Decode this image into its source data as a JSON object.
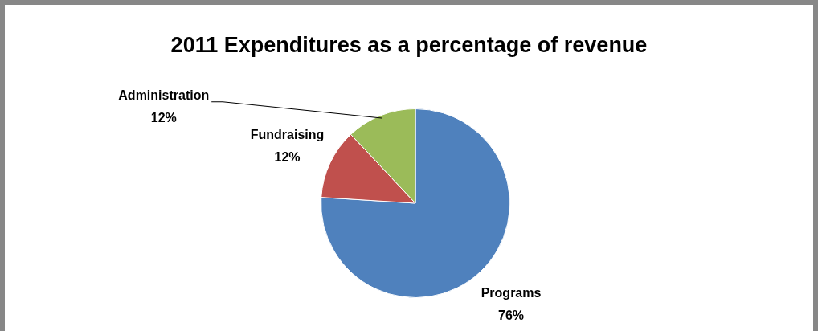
{
  "chart_data": {
    "type": "pie",
    "title": "2011 Expenditures as a percentage of revenue",
    "categories": [
      "Programs",
      "Fundraising",
      "Administration"
    ],
    "values": [
      76,
      12,
      12
    ],
    "colors": [
      "#4f81bd",
      "#c0504d",
      "#9bbb59"
    ],
    "value_labels": [
      "76%",
      "12%",
      "12%"
    ],
    "legend": false
  }
}
